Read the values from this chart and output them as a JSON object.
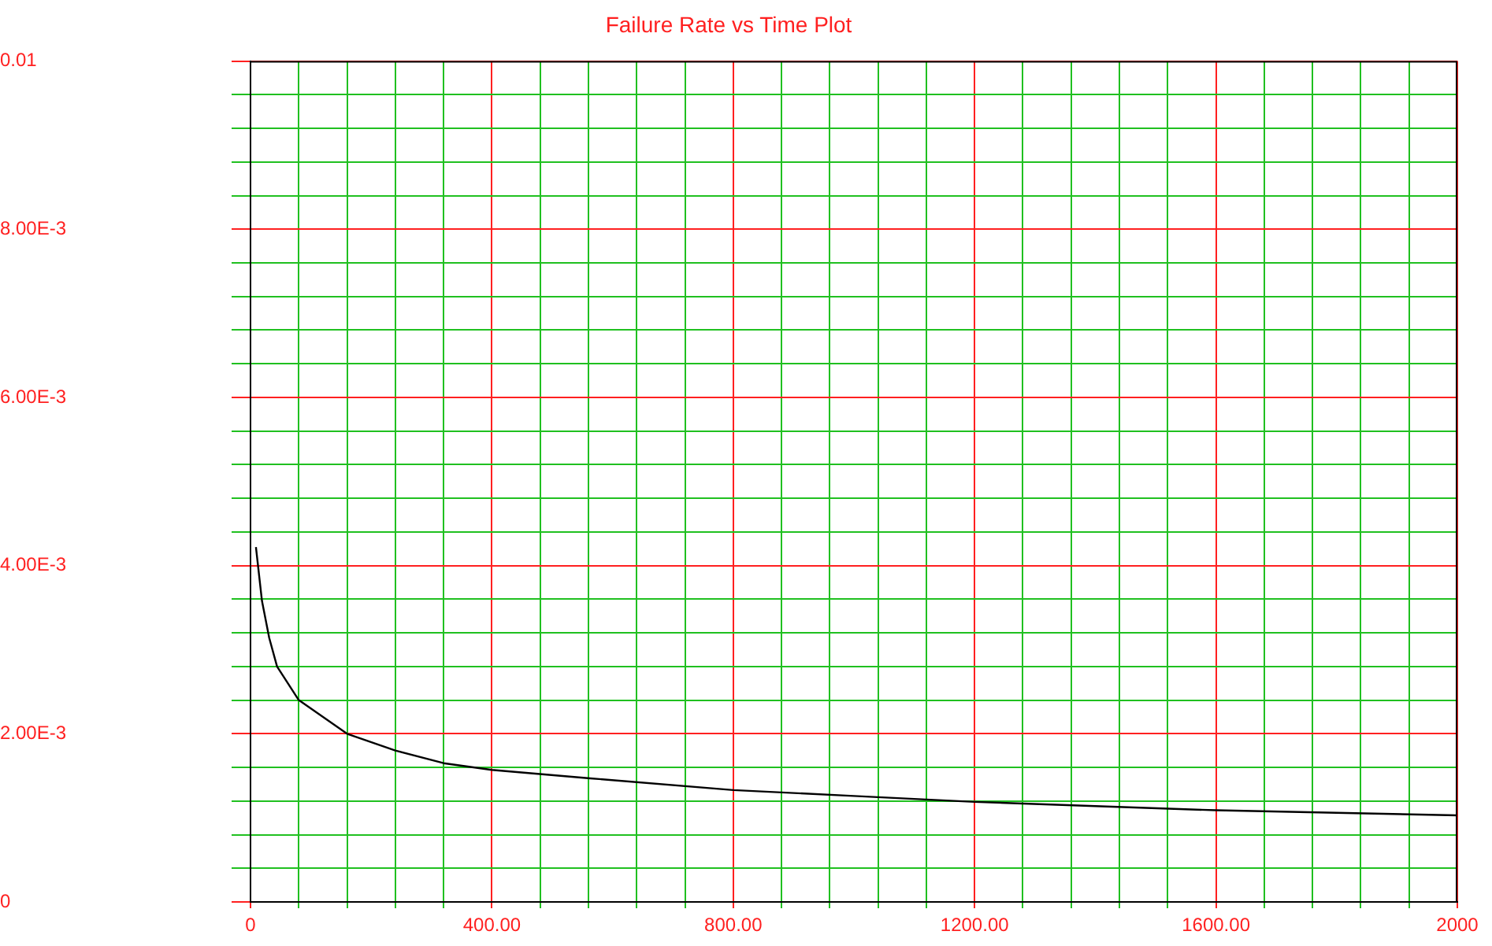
{
  "chart_data": {
    "type": "line",
    "title": "Failure Rate vs Time Plot",
    "x": [
      9,
      19,
      31,
      44,
      80,
      160,
      240,
      320,
      400,
      563,
      800,
      1000,
      1200,
      1400,
      1600,
      1800,
      2000
    ],
    "series": [
      {
        "color": "#000000",
        "values": [
          0.00422,
          0.00358,
          0.00314,
          0.0028,
          0.0024,
          0.002,
          0.0018,
          0.00165,
          0.00157,
          0.00147,
          0.00133,
          0.00126,
          0.00119,
          0.00114,
          0.00109,
          0.00106,
          0.00103
        ]
      }
    ],
    "xlim": [
      0,
      2000
    ],
    "xticks": [
      {
        "value": 0,
        "label": "0"
      },
      {
        "value": 80,
        "label": null
      },
      {
        "value": 160,
        "label": null
      },
      {
        "value": 240,
        "label": null
      },
      {
        "value": 320,
        "label": null
      },
      {
        "value": 400,
        "label": "400.00"
      },
      {
        "value": 480,
        "label": null
      },
      {
        "value": 560,
        "label": null
      },
      {
        "value": 640,
        "label": null
      },
      {
        "value": 720,
        "label": null
      },
      {
        "value": 800,
        "label": "800.00"
      },
      {
        "value": 880,
        "label": null
      },
      {
        "value": 960,
        "label": null
      },
      {
        "value": 1040,
        "label": null
      },
      {
        "value": 1120,
        "label": null
      },
      {
        "value": 1200,
        "label": "1200.00"
      },
      {
        "value": 1280,
        "label": null
      },
      {
        "value": 1360,
        "label": null
      },
      {
        "value": 1440,
        "label": null
      },
      {
        "value": 1520,
        "label": null
      },
      {
        "value": 1600,
        "label": "1600.00"
      },
      {
        "value": 1680,
        "label": null
      },
      {
        "value": 1760,
        "label": null
      },
      {
        "value": 1840,
        "label": null
      },
      {
        "value": 1920,
        "label": null
      },
      {
        "value": 2000,
        "label": "2000"
      }
    ],
    "ylim": [
      0,
      0.01
    ],
    "yticks": [
      {
        "value": 0,
        "label": "0"
      },
      {
        "value": 0.0004,
        "label": null
      },
      {
        "value": 0.0008,
        "label": null
      },
      {
        "value": 0.0012,
        "label": null
      },
      {
        "value": 0.0016,
        "label": null
      },
      {
        "value": 0.002,
        "label": "2.00E-3"
      },
      {
        "value": 0.0024,
        "label": null
      },
      {
        "value": 0.0028,
        "label": null
      },
      {
        "value": 0.0032,
        "label": null
      },
      {
        "value": 0.0036,
        "label": null
      },
      {
        "value": 0.004,
        "label": "4.00E-3"
      },
      {
        "value": 0.0044,
        "label": null
      },
      {
        "value": 0.0048,
        "label": null
      },
      {
        "value": 0.0052,
        "label": null
      },
      {
        "value": 0.0056,
        "label": null
      },
      {
        "value": 0.006,
        "label": "6.00E-3"
      },
      {
        "value": 0.0064,
        "label": null
      },
      {
        "value": 0.0068,
        "label": null
      },
      {
        "value": 0.0072,
        "label": null
      },
      {
        "value": 0.0076,
        "label": null
      },
      {
        "value": 0.008,
        "label": "8.00E-3"
      },
      {
        "value": 0.0084,
        "label": null
      },
      {
        "value": 0.0088,
        "label": null
      },
      {
        "value": 0.0092,
        "label": null
      },
      {
        "value": 0.0096,
        "label": null
      },
      {
        "value": 0.01,
        "label": "0.01"
      }
    ],
    "grid": true,
    "legend": false,
    "marker": "none",
    "line_style": "solid"
  }
}
